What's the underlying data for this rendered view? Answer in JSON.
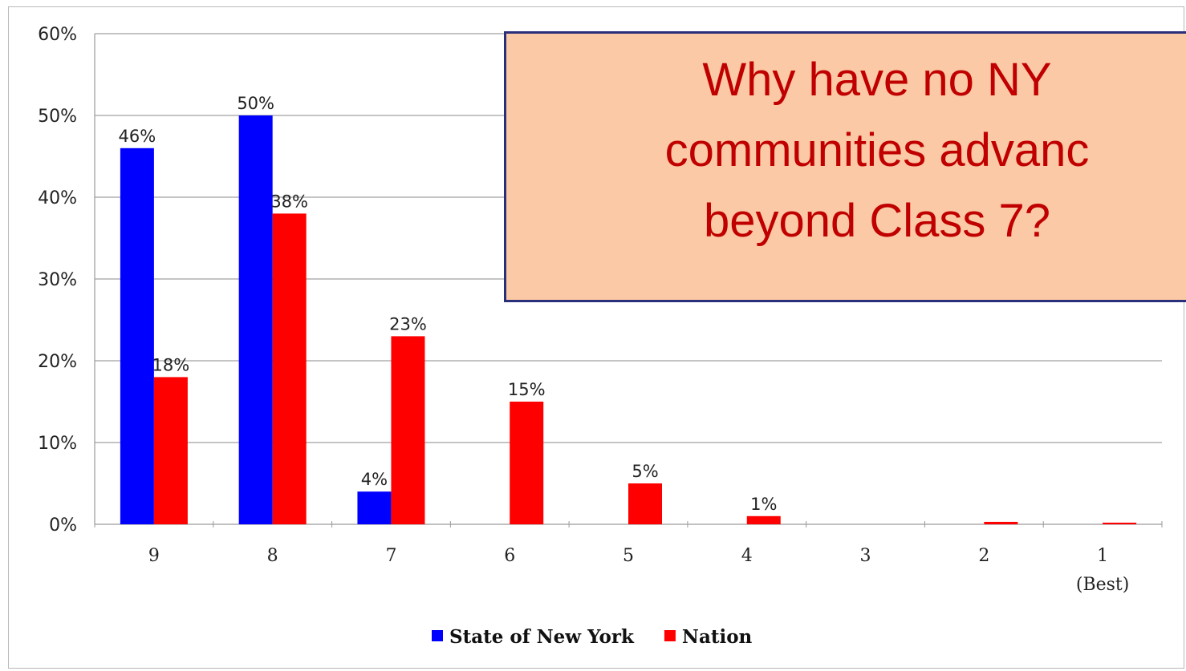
{
  "chart_data": {
    "type": "bar",
    "categories": [
      "9",
      "8",
      "7",
      "6",
      "5",
      "4",
      "3",
      "2",
      "1"
    ],
    "category_sublabels": [
      "",
      "",
      "",
      "",
      "",
      "",
      "",
      "",
      "(Best)"
    ],
    "series": [
      {
        "name": "State of New York",
        "color": "#0000ff",
        "values": [
          46,
          50,
          4,
          0,
          0,
          0,
          0,
          0,
          0
        ]
      },
      {
        "name": "Nation",
        "color": "#ff0000",
        "values": [
          18,
          38,
          23,
          15,
          5,
          1,
          0,
          0.3,
          0.2
        ]
      }
    ],
    "data_labels": [
      [
        "46%",
        "50%",
        "4%",
        "",
        "",
        "",
        "",
        "",
        ""
      ],
      [
        "18%",
        "38%",
        "23%",
        "15%",
        "5%",
        "1%",
        "",
        "",
        ""
      ]
    ],
    "yticks": [
      "0%",
      "10%",
      "20%",
      "30%",
      "40%",
      "50%",
      "60%"
    ],
    "ylim": [
      0,
      60
    ],
    "grid": true,
    "legend_position": "bottom-center"
  },
  "callout": {
    "lines": [
      "Why have no NY",
      "communities advanc",
      "beyond Class 7?"
    ],
    "background": "#fbc9a5",
    "border": "#2a2f7a",
    "text_color": "#c00000"
  }
}
